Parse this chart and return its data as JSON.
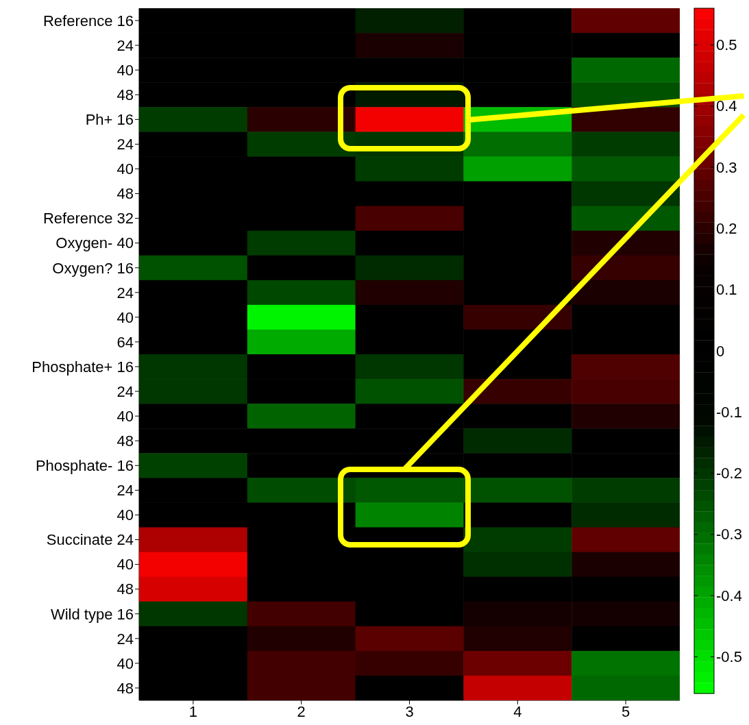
{
  "chart_data": {
    "type": "heatmap",
    "categories": [
      "1",
      "2",
      "3",
      "4",
      "5"
    ],
    "y_categories": [
      "Reference 16",
      "24",
      "40",
      "48",
      "Ph+ 16",
      "24",
      "40",
      "48",
      "Reference 32",
      "Oxygen- 40",
      "Oxygen? 16",
      "24",
      "40",
      "64",
      "Phosphate+ 16",
      "24",
      "40",
      "48",
      "Phosphate- 16",
      "24",
      "40",
      "Succinate 24",
      "40",
      "48",
      "Wild type 16",
      "24",
      "40",
      "48"
    ],
    "cells": [
      [
        0,
        0,
        -0.16,
        0,
        0.29
      ],
      [
        0,
        0,
        0.17,
        0,
        0
      ],
      [
        0,
        0,
        0,
        0,
        -0.29
      ],
      [
        0,
        0,
        -0.15,
        0,
        -0.25
      ],
      [
        -0.21,
        0.2,
        0.54,
        -0.44,
        0.21
      ],
      [
        0,
        -0.21,
        -0.2,
        -0.3,
        -0.21
      ],
      [
        0,
        0,
        -0.21,
        -0.39,
        -0.26
      ],
      [
        0,
        0,
        0,
        0,
        -0.2
      ],
      [
        0,
        0,
        0.25,
        0,
        -0.26
      ],
      [
        0,
        -0.21,
        0,
        0,
        0.18
      ],
      [
        -0.25,
        0,
        -0.18,
        0,
        0.22
      ],
      [
        0,
        -0.23,
        0.18,
        0,
        0.17
      ],
      [
        0,
        -0.54,
        0,
        0.22,
        0
      ],
      [
        0,
        -0.41,
        0,
        0,
        0
      ],
      [
        -0.2,
        0,
        -0.2,
        0,
        0.26
      ],
      [
        -0.2,
        0,
        -0.25,
        0.22,
        0.25
      ],
      [
        0,
        -0.28,
        0,
        0,
        0.18
      ],
      [
        0,
        0,
        0,
        -0.18,
        0
      ],
      [
        -0.22,
        0,
        0,
        0,
        0
      ],
      [
        0,
        -0.24,
        -0.26,
        -0.25,
        -0.21
      ],
      [
        0,
        0,
        -0.34,
        0,
        -0.18
      ],
      [
        0.42,
        0,
        0,
        -0.21,
        0.29
      ],
      [
        0.54,
        0,
        0,
        -0.19,
        0.17
      ],
      [
        0.49,
        0,
        0,
        0,
        0
      ],
      [
        -0.2,
        0.24,
        0,
        0.16,
        0.16
      ],
      [
        0,
        0.18,
        0.28,
        0.18,
        0
      ],
      [
        0,
        0.24,
        0.22,
        0.31,
        -0.31
      ],
      [
        0,
        0.24,
        0,
        0.46,
        -0.29
      ]
    ],
    "clim": [
      -0.56,
      0.56
    ],
    "cticks": [
      0.5,
      0.4,
      0.3,
      0.2,
      0.1,
      0,
      -0.1,
      -0.2,
      -0.3,
      -0.4,
      -0.5
    ]
  }
}
